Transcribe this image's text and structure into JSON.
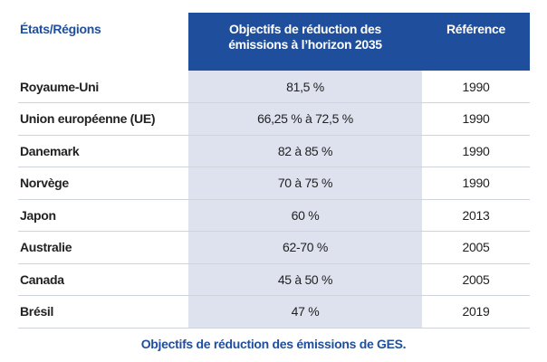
{
  "table": {
    "header": [
      "États/Régions",
      "Objectifs de réduction des émissions à l’horizon 2035",
      "Référence"
    ],
    "rows": [
      [
        "Royaume-Uni",
        "81,5 %",
        "1990"
      ],
      [
        "Union européenne (UE)",
        "66,25 % à 72,5 %",
        "1990"
      ],
      [
        "Danemark",
        "82 à 85 %",
        "1990"
      ],
      [
        "Norvège",
        "70 à 75 %",
        "1990"
      ],
      [
        "Japon",
        "60 %",
        "2013"
      ],
      [
        "Australie",
        "62-70 %",
        "2005"
      ],
      [
        "Canada",
        "45 à 50 %",
        "2005"
      ],
      [
        "Brésil",
        "47 %",
        "2019"
      ]
    ]
  },
  "caption": "Objectifs de réduction des émissions de GES."
}
